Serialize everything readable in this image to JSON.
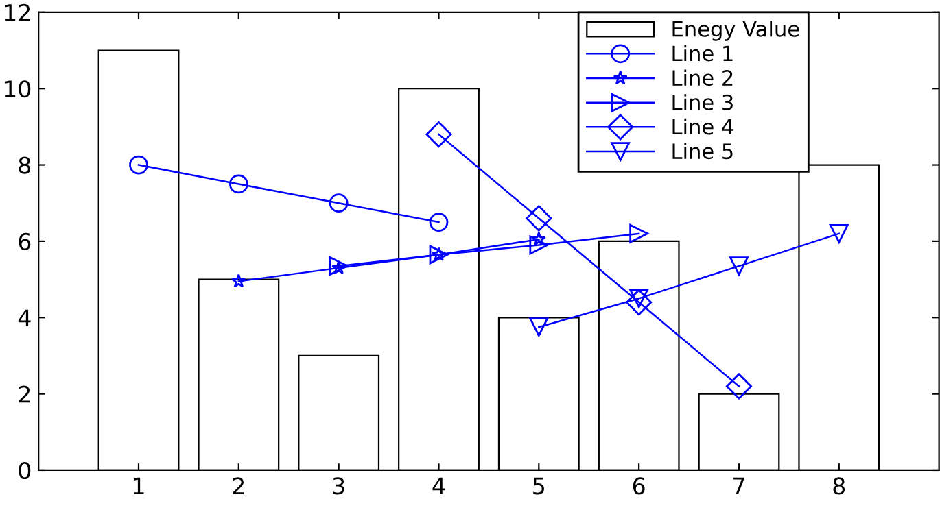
{
  "chart_data": {
    "type": "bar",
    "xlim": [
      0,
      9
    ],
    "xticks": [
      1,
      2,
      3,
      4,
      5,
      6,
      7,
      8
    ],
    "ylim": [
      0,
      12
    ],
    "yticks": [
      0,
      2,
      4,
      6,
      8,
      10,
      12
    ],
    "grid": false,
    "legend": "top right",
    "series": [
      {
        "name": "Enegy Value",
        "color": "#ffffff",
        "x": [
          1,
          2,
          3,
          4,
          5,
          6,
          7,
          8
        ],
        "values": [
          11,
          5,
          3,
          10,
          4,
          6,
          2,
          8
        ]
      },
      {
        "name": "Line 1",
        "type": "line",
        "color": "#0000ff",
        "marker": "circle",
        "x": [
          1,
          2,
          3,
          4
        ],
        "values": [
          8,
          7.5,
          7,
          6.5
        ]
      },
      {
        "name": "Line 2",
        "type": "line",
        "color": "#0000ff",
        "marker": "star",
        "x": [
          2,
          3,
          4,
          5
        ],
        "values": [
          4.95,
          5.3,
          5.65,
          6.05
        ]
      },
      {
        "name": "Line 3",
        "type": "line",
        "color": "#0000ff",
        "marker": "triangle-right",
        "x": [
          3,
          4,
          5,
          6
        ],
        "values": [
          5.35,
          5.65,
          5.9,
          6.2
        ]
      },
      {
        "name": "Line 4",
        "type": "line",
        "color": "#0000ff",
        "marker": "diamond",
        "x": [
          4,
          5,
          6,
          7
        ],
        "values": [
          8.8,
          6.6,
          4.4,
          2.2
        ]
      },
      {
        "name": "Line 5",
        "type": "line",
        "color": "#0000ff",
        "marker": "triangle-down",
        "x": [
          5,
          6,
          7,
          8
        ],
        "values": [
          3.75,
          4.5,
          5.35,
          6.2
        ]
      }
    ]
  }
}
